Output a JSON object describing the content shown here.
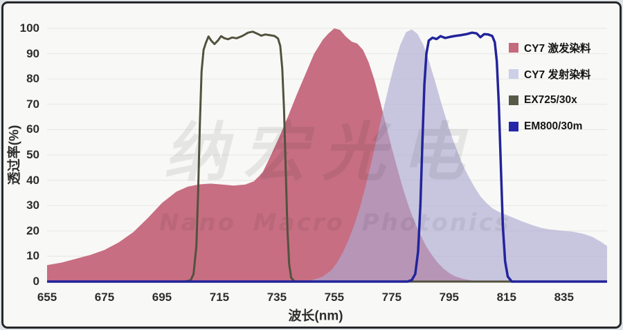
{
  "watermark": {
    "line1": "纳宏光电",
    "line2": "Nano Macro Photonics"
  },
  "legend": [
    {
      "label": "CY7 激发染料",
      "color": "#c5697f"
    },
    {
      "label": "CY7 发射染料",
      "color": "#cdcfe8"
    },
    {
      "label": "EX725/30x",
      "color": "#565a47"
    },
    {
      "label": "EM800/30m",
      "color": "#2527a8"
    }
  ],
  "chart_data": {
    "type": "area",
    "title": "",
    "xlabel": "波长(nm)",
    "ylabel": "透过率(%)",
    "xlim": [
      655,
      850
    ],
    "ylim": [
      0,
      100
    ],
    "x_ticks": [
      655,
      675,
      695,
      715,
      735,
      755,
      775,
      795,
      815,
      835
    ],
    "y_ticks": [
      0,
      10,
      20,
      30,
      40,
      50,
      60,
      70,
      80,
      90,
      100
    ],
    "grid": "horizontal",
    "gridline_color": "#e9e9e6",
    "legend_position": "top-right",
    "series": [
      {
        "id": "cy7-excitation-dye",
        "name": "CY7 激发染料",
        "style": "area",
        "fill": "#c76e82",
        "points": [
          [
            655,
            6.5
          ],
          [
            660,
            7.5
          ],
          [
            665,
            9
          ],
          [
            670,
            10.5
          ],
          [
            675,
            12.5
          ],
          [
            680,
            15.5
          ],
          [
            685,
            19.5
          ],
          [
            690,
            25
          ],
          [
            695,
            31
          ],
          [
            700,
            35.5
          ],
          [
            704,
            37.5
          ],
          [
            708,
            38.4
          ],
          [
            712,
            38.7
          ],
          [
            716,
            38.3
          ],
          [
            720,
            37.9
          ],
          [
            724,
            38.3
          ],
          [
            727,
            39.6
          ],
          [
            730,
            43
          ],
          [
            733,
            50
          ],
          [
            736,
            57.5
          ],
          [
            739,
            65.5
          ],
          [
            742,
            74
          ],
          [
            745,
            82
          ],
          [
            748,
            90
          ],
          [
            751,
            95.5
          ],
          [
            753,
            98
          ],
          [
            755,
            100
          ],
          [
            757,
            99.4
          ],
          [
            759,
            96.8
          ],
          [
            761,
            94.8
          ],
          [
            763,
            94
          ],
          [
            765,
            91.5
          ],
          [
            767,
            86.5
          ],
          [
            769,
            79.5
          ],
          [
            771,
            71
          ],
          [
            773,
            62
          ],
          [
            775,
            53
          ],
          [
            777,
            44.5
          ],
          [
            779,
            36.5
          ],
          [
            781,
            29.5
          ],
          [
            783,
            23.5
          ],
          [
            785,
            18.5
          ],
          [
            787,
            14
          ],
          [
            789,
            10.5
          ],
          [
            791,
            7.5
          ],
          [
            793,
            5.2
          ],
          [
            795,
            3.4
          ],
          [
            797,
            2.1
          ],
          [
            800,
            1
          ],
          [
            803,
            0.4
          ],
          [
            807,
            0.1
          ],
          [
            810,
            0
          ]
        ]
      },
      {
        "id": "cy7-emission-dye",
        "name": "CY7 发射染料",
        "style": "area",
        "fill": "rgba(175,170,211,0.66)",
        "points": [
          [
            745,
            0
          ],
          [
            748,
            0.8
          ],
          [
            751,
            2
          ],
          [
            754,
            4.5
          ],
          [
            756,
            7.5
          ],
          [
            758,
            11.5
          ],
          [
            760,
            16.5
          ],
          [
            762,
            22.5
          ],
          [
            764,
            29.5
          ],
          [
            766,
            38
          ],
          [
            768,
            47.5
          ],
          [
            770,
            57.5
          ],
          [
            772,
            67.5
          ],
          [
            774,
            77
          ],
          [
            776,
            86
          ],
          [
            778,
            93.5
          ],
          [
            780,
            98.5
          ],
          [
            782,
            99.6
          ],
          [
            784,
            97.8
          ],
          [
            786,
            93.5
          ],
          [
            788,
            87
          ],
          [
            790,
            79.5
          ],
          [
            792,
            71.5
          ],
          [
            794,
            64
          ],
          [
            796,
            57
          ],
          [
            798,
            51
          ],
          [
            800,
            45.5
          ],
          [
            802,
            41
          ],
          [
            804,
            37
          ],
          [
            806,
            33.5
          ],
          [
            808,
            31
          ],
          [
            810,
            29
          ],
          [
            812,
            27.7
          ],
          [
            815,
            26.3
          ],
          [
            818,
            24.9
          ],
          [
            821,
            23.5
          ],
          [
            824,
            22.3
          ],
          [
            827,
            21.2
          ],
          [
            830,
            20.6
          ],
          [
            834,
            20.1
          ],
          [
            838,
            19.7
          ],
          [
            842,
            18.8
          ],
          [
            845,
            17.6
          ],
          [
            848,
            15.6
          ],
          [
            850,
            14
          ]
        ]
      },
      {
        "id": "ex725-30x-filter",
        "name": "EX725/30x",
        "style": "line",
        "stroke": "#52523e",
        "stroke_width": 3,
        "points": [
          [
            655,
            0
          ],
          [
            703,
            0
          ],
          [
            705,
            0.5
          ],
          [
            706,
            3
          ],
          [
            707,
            14
          ],
          [
            707.6,
            35
          ],
          [
            708.2,
            62
          ],
          [
            708.8,
            83
          ],
          [
            709.5,
            91.5
          ],
          [
            710.3,
            94.3
          ],
          [
            711.2,
            96.8
          ],
          [
            712.2,
            95.1
          ],
          [
            713.3,
            93.8
          ],
          [
            714.5,
            95.2
          ],
          [
            715.6,
            96.9
          ],
          [
            716.8,
            96.1
          ],
          [
            718,
            95.7
          ],
          [
            719.4,
            96.4
          ],
          [
            721,
            96.1
          ],
          [
            723,
            97
          ],
          [
            725,
            98.3
          ],
          [
            726.6,
            98.7
          ],
          [
            728.2,
            97.9
          ],
          [
            729.6,
            97.1
          ],
          [
            731,
            97.6
          ],
          [
            732.6,
            97.3
          ],
          [
            734.2,
            97
          ],
          [
            735.4,
            96
          ],
          [
            736.2,
            93
          ],
          [
            736.9,
            84
          ],
          [
            737.5,
            68
          ],
          [
            738.1,
            44
          ],
          [
            738.7,
            21
          ],
          [
            739.3,
            7
          ],
          [
            740,
            1.5
          ],
          [
            741.2,
            0
          ],
          [
            850,
            0
          ]
        ]
      },
      {
        "id": "em800-30m-filter",
        "name": "EM800/30m",
        "style": "line",
        "stroke": "#22249b",
        "stroke_width": 3.5,
        "points": [
          [
            655,
            0
          ],
          [
            780.5,
            0
          ],
          [
            782,
            0.6
          ],
          [
            783.2,
            3
          ],
          [
            784.2,
            12
          ],
          [
            785,
            30
          ],
          [
            785.7,
            55
          ],
          [
            786.4,
            78
          ],
          [
            787.1,
            90
          ],
          [
            787.9,
            95.2
          ],
          [
            789.2,
            96.3
          ],
          [
            790.6,
            95.8
          ],
          [
            792,
            96.9
          ],
          [
            793.6,
            96.2
          ],
          [
            795.2,
            96.6
          ],
          [
            797,
            97
          ],
          [
            799,
            97.3
          ],
          [
            801,
            97.7
          ],
          [
            803,
            98.3
          ],
          [
            804.6,
            98
          ],
          [
            805.9,
            96.5
          ],
          [
            807.2,
            97.7
          ],
          [
            808.6,
            97.6
          ],
          [
            810,
            97
          ],
          [
            810.9,
            94.5
          ],
          [
            811.6,
            87
          ],
          [
            812.3,
            70
          ],
          [
            813,
            46
          ],
          [
            813.7,
            22
          ],
          [
            814.5,
            8
          ],
          [
            815.4,
            2
          ],
          [
            816.8,
            0
          ],
          [
            850,
            0
          ]
        ]
      }
    ]
  }
}
